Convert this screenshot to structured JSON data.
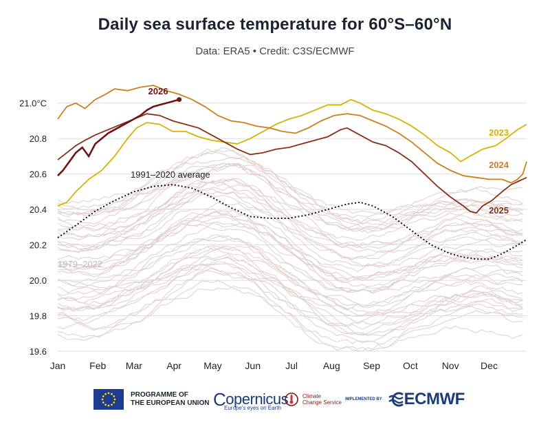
{
  "chart_data": {
    "type": "line",
    "title": "Daily sea surface temperature for 60°S–60°N",
    "subtitle": "Data: ERA5 • Credit: C3S/ECMWF",
    "x_months": [
      "Jan",
      "Feb",
      "Mar",
      "Apr",
      "May",
      "Jun",
      "Jul",
      "Aug",
      "Sep",
      "Oct",
      "Nov",
      "Dec"
    ],
    "y_ticks": [
      "19.6",
      "19.8",
      "20.0",
      "20.2",
      "20.4",
      "20.6",
      "20.8",
      "21.0°C"
    ],
    "y_tick_values": [
      19.6,
      19.8,
      20.0,
      20.2,
      20.4,
      20.6,
      20.8,
      21.0
    ],
    "ylim": [
      19.6,
      21.1
    ],
    "grid": true,
    "series": [
      {
        "name": "2023",
        "color": "#d9b100",
        "points": [
          [
            1,
            20.42
          ],
          [
            8,
            20.44
          ],
          [
            15,
            20.5
          ],
          [
            25,
            20.57
          ],
          [
            35,
            20.62
          ],
          [
            45,
            20.7
          ],
          [
            55,
            20.8
          ],
          [
            62,
            20.86
          ],
          [
            70,
            20.89
          ],
          [
            80,
            20.88
          ],
          [
            90,
            20.84
          ],
          [
            100,
            20.84
          ],
          [
            110,
            20.81
          ],
          [
            120,
            20.79
          ],
          [
            130,
            20.78
          ],
          [
            140,
            20.77
          ],
          [
            150,
            20.8
          ],
          [
            160,
            20.84
          ],
          [
            170,
            20.88
          ],
          [
            180,
            20.91
          ],
          [
            190,
            20.93
          ],
          [
            200,
            20.96
          ],
          [
            210,
            20.99
          ],
          [
            220,
            20.99
          ],
          [
            228,
            21.02
          ],
          [
            235,
            21.0
          ],
          [
            245,
            20.96
          ],
          [
            255,
            20.94
          ],
          [
            265,
            20.91
          ],
          [
            275,
            20.87
          ],
          [
            285,
            20.82
          ],
          [
            295,
            20.76
          ],
          [
            305,
            20.72
          ],
          [
            313,
            20.67
          ],
          [
            320,
            20.7
          ],
          [
            330,
            20.74
          ],
          [
            340,
            20.76
          ],
          [
            348,
            20.8
          ],
          [
            357,
            20.85
          ],
          [
            364,
            20.88
          ]
        ]
      },
      {
        "name": "2024",
        "color": "#c9801c",
        "points": [
          [
            1,
            20.91
          ],
          [
            8,
            20.98
          ],
          [
            15,
            21.0
          ],
          [
            22,
            20.97
          ],
          [
            30,
            21.02
          ],
          [
            38,
            21.05
          ],
          [
            45,
            21.08
          ],
          [
            55,
            21.07
          ],
          [
            65,
            21.09
          ],
          [
            75,
            21.1
          ],
          [
            85,
            21.07
          ],
          [
            95,
            21.05
          ],
          [
            105,
            21.02
          ],
          [
            115,
            20.98
          ],
          [
            125,
            20.93
          ],
          [
            135,
            20.9
          ],
          [
            145,
            20.89
          ],
          [
            155,
            20.87
          ],
          [
            165,
            20.86
          ],
          [
            175,
            20.84
          ],
          [
            185,
            20.83
          ],
          [
            195,
            20.86
          ],
          [
            205,
            20.9
          ],
          [
            215,
            20.93
          ],
          [
            225,
            20.94
          ],
          [
            235,
            20.93
          ],
          [
            245,
            20.9
          ],
          [
            255,
            20.87
          ],
          [
            265,
            20.83
          ],
          [
            275,
            20.78
          ],
          [
            285,
            20.72
          ],
          [
            295,
            20.66
          ],
          [
            305,
            20.62
          ],
          [
            315,
            20.59
          ],
          [
            325,
            20.58
          ],
          [
            335,
            20.57
          ],
          [
            345,
            20.57
          ],
          [
            352,
            20.55
          ],
          [
            357,
            20.57
          ],
          [
            361,
            20.6
          ],
          [
            364,
            20.67
          ]
        ]
      },
      {
        "name": "2025",
        "color": "#8a2d16",
        "points": [
          [
            1,
            20.68
          ],
          [
            8,
            20.72
          ],
          [
            15,
            20.76
          ],
          [
            22,
            20.79
          ],
          [
            30,
            20.82
          ],
          [
            40,
            20.85
          ],
          [
            50,
            20.88
          ],
          [
            60,
            20.91
          ],
          [
            70,
            20.94
          ],
          [
            80,
            20.93
          ],
          [
            90,
            20.9
          ],
          [
            100,
            20.88
          ],
          [
            110,
            20.86
          ],
          [
            120,
            20.82
          ],
          [
            130,
            20.78
          ],
          [
            140,
            20.74
          ],
          [
            150,
            20.71
          ],
          [
            160,
            20.72
          ],
          [
            170,
            20.74
          ],
          [
            180,
            20.75
          ],
          [
            190,
            20.77
          ],
          [
            200,
            20.79
          ],
          [
            210,
            20.81
          ],
          [
            220,
            20.85
          ],
          [
            225,
            20.86
          ],
          [
            235,
            20.82
          ],
          [
            245,
            20.78
          ],
          [
            255,
            20.76
          ],
          [
            265,
            20.72
          ],
          [
            275,
            20.67
          ],
          [
            285,
            20.6
          ],
          [
            295,
            20.53
          ],
          [
            305,
            20.47
          ],
          [
            315,
            20.42
          ],
          [
            320,
            20.39
          ],
          [
            325,
            20.38
          ],
          [
            330,
            20.42
          ],
          [
            337,
            20.45
          ],
          [
            345,
            20.5
          ],
          [
            352,
            20.54
          ],
          [
            358,
            20.56
          ],
          [
            364,
            20.58
          ]
        ]
      },
      {
        "name": "2026",
        "color": "#6e1416",
        "points": [
          [
            1,
            20.59
          ],
          [
            5,
            20.62
          ],
          [
            10,
            20.67
          ],
          [
            15,
            20.72
          ],
          [
            20,
            20.75
          ],
          [
            25,
            20.7
          ],
          [
            30,
            20.77
          ],
          [
            35,
            20.8
          ],
          [
            40,
            20.83
          ],
          [
            45,
            20.85
          ],
          [
            50,
            20.87
          ],
          [
            55,
            20.89
          ],
          [
            60,
            20.91
          ],
          [
            65,
            20.93
          ],
          [
            70,
            20.96
          ],
          [
            75,
            20.98
          ],
          [
            80,
            20.99
          ],
          [
            85,
            21.0
          ],
          [
            90,
            21.01
          ],
          [
            95,
            21.02
          ]
        ]
      },
      {
        "name": "1991–2020 average",
        "color": "#111111",
        "points": [
          [
            1,
            20.24
          ],
          [
            15,
            20.31
          ],
          [
            30,
            20.39
          ],
          [
            45,
            20.45
          ],
          [
            60,
            20.5
          ],
          [
            75,
            20.53
          ],
          [
            90,
            20.54
          ],
          [
            105,
            20.52
          ],
          [
            120,
            20.47
          ],
          [
            135,
            20.41
          ],
          [
            150,
            20.36
          ],
          [
            165,
            20.35
          ],
          [
            180,
            20.35
          ],
          [
            195,
            20.37
          ],
          [
            210,
            20.4
          ],
          [
            225,
            20.43
          ],
          [
            235,
            20.44
          ],
          [
            245,
            20.42
          ],
          [
            260,
            20.36
          ],
          [
            275,
            20.28
          ],
          [
            290,
            20.2
          ],
          [
            305,
            20.15
          ],
          [
            315,
            20.13
          ],
          [
            325,
            20.12
          ],
          [
            335,
            20.12
          ],
          [
            345,
            20.15
          ],
          [
            355,
            20.19
          ],
          [
            364,
            20.23
          ]
        ]
      }
    ],
    "background_series_label": "1979–2022",
    "labels": [
      {
        "text": "2026",
        "series": "2026"
      },
      {
        "text": "2023",
        "series": "2023"
      },
      {
        "text": "2024",
        "series": "2024"
      },
      {
        "text": "2025",
        "series": "2025"
      },
      {
        "text": "1991–2020 average",
        "series": "1991–2020 average"
      },
      {
        "text": "1979–2022",
        "series": "1979–2022"
      }
    ]
  },
  "footer": {
    "eu_line1": "PROGRAMME OF",
    "eu_line2": "THE EUROPEAN UNION",
    "copernicus": "opernicus",
    "copernicus_c": "C",
    "copernicus_sub": "Europe's eyes on Earth",
    "ccs_line1": "Climate",
    "ccs_line2": "Change Service",
    "implemented_by": "IMPLEMENTED BY",
    "ecmwf": "ECMWF"
  },
  "colors": {
    "background_lines": "#e2d2cf",
    "grid": "#dedede"
  }
}
